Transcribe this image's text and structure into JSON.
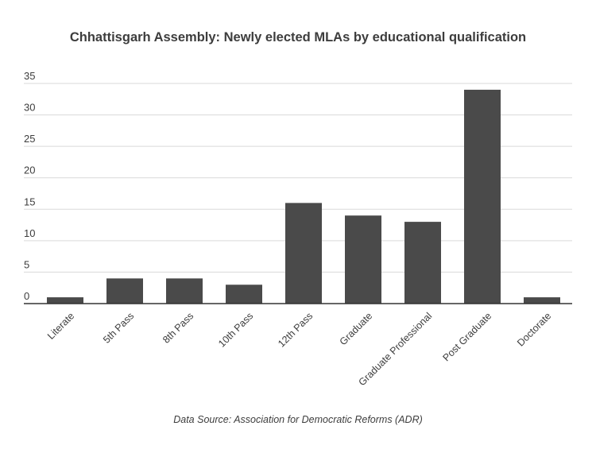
{
  "chart_data": {
    "type": "bar",
    "title": "Chhattisgarh Assembly: Newly elected MLAs by educational qualification",
    "categories": [
      "Literate",
      "5th Pass",
      "8th Pass",
      "10th Pass",
      "12th Pass",
      "Graduate",
      "Graduate Professional",
      "Post Graduate",
      "Doctorate"
    ],
    "values": [
      1,
      4,
      4,
      3,
      16,
      14,
      13,
      34,
      1
    ],
    "ylim": [
      0,
      35
    ],
    "yticks": [
      0,
      5,
      10,
      15,
      20,
      25,
      30,
      35
    ],
    "grid": true,
    "bar_color": "#4a4a4a",
    "xlabel": "",
    "ylabel": ""
  },
  "source": "Data Source: Association for Democratic Reforms (ADR)"
}
